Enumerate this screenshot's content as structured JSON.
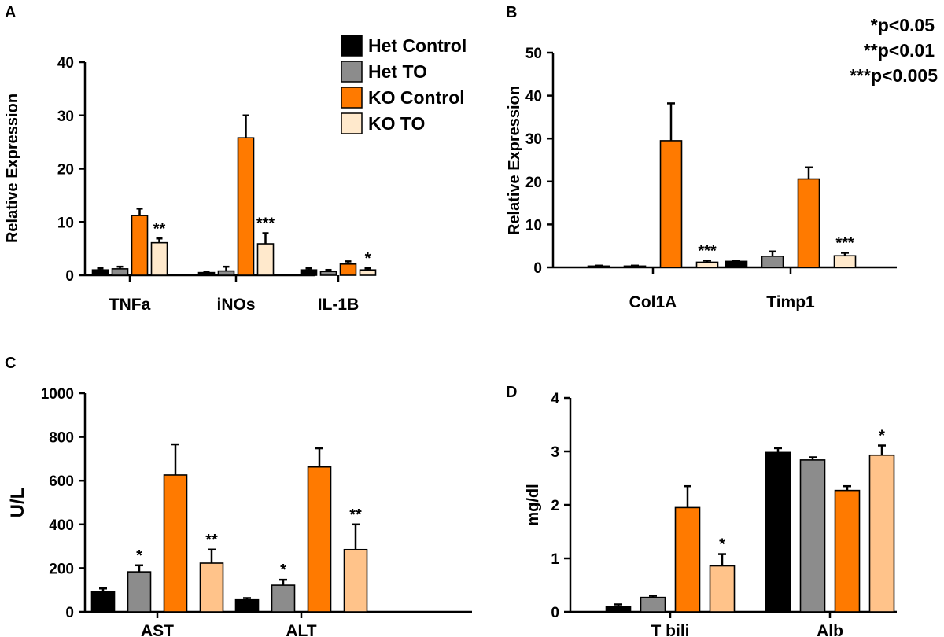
{
  "colors": {
    "Het Control": "#000000",
    "Het TO": "#8c8c8c",
    "KO Control": "#ff7a00",
    "KO TO": "#ffe9cc",
    "KO TO (C, D)": "#ffc38a"
  },
  "legend": {
    "items": [
      "Het Control",
      "Het TO",
      "KO Control",
      "KO TO"
    ]
  },
  "significance_notes": [
    "*p<0.05",
    "**p<0.01",
    "***p<0.005"
  ],
  "chart_data": [
    {
      "panel": "A",
      "type": "bar",
      "ylabel": "Relative Expression",
      "ylim": [
        0,
        40
      ],
      "yticks": [
        0,
        10,
        20,
        30,
        40
      ],
      "categories": [
        "TNFa",
        "iNOs",
        "IL-1B"
      ],
      "series": [
        {
          "name": "Het Control",
          "values": [
            1.0,
            0.5,
            1.0
          ],
          "errors": [
            0.3,
            0.2,
            0.3
          ]
        },
        {
          "name": "Het TO",
          "values": [
            1.2,
            0.8,
            0.7
          ],
          "errors": [
            0.4,
            0.8,
            0.3
          ]
        },
        {
          "name": "KO Control",
          "values": [
            11.2,
            25.8,
            2.1
          ],
          "errors": [
            1.3,
            4.2,
            0.5
          ]
        },
        {
          "name": "KO TO",
          "values": [
            6.1,
            5.9,
            1.0
          ],
          "errors": [
            0.8,
            2.0,
            0.3
          ]
        }
      ],
      "significance": [
        {
          "category": "TNFa",
          "series": "KO TO",
          "label": "**"
        },
        {
          "category": "iNOs",
          "series": "KO TO",
          "label": "***"
        },
        {
          "category": "IL-1B",
          "series": "KO TO",
          "label": "*"
        }
      ]
    },
    {
      "panel": "B",
      "type": "bar",
      "ylabel": "Relative Expression",
      "ylim": [
        0,
        50
      ],
      "yticks": [
        0,
        10,
        20,
        30,
        40,
        50
      ],
      "categories": [
        "Col1A",
        "Timp1"
      ],
      "series": [
        {
          "name": "Het Control",
          "values": [
            0.3,
            1.4
          ],
          "errors": [
            0.1,
            0.2
          ]
        },
        {
          "name": "Het TO",
          "values": [
            0.3,
            2.6
          ],
          "errors": [
            0.1,
            1.1
          ]
        },
        {
          "name": "KO Control",
          "values": [
            29.5,
            20.6
          ],
          "errors": [
            8.7,
            2.7
          ]
        },
        {
          "name": "KO TO",
          "values": [
            1.2,
            2.7
          ],
          "errors": [
            0.4,
            0.7
          ]
        }
      ],
      "significance": [
        {
          "category": "Col1A",
          "series": "KO TO",
          "label": "***"
        },
        {
          "category": "Timp1",
          "series": "KO TO",
          "label": "***"
        }
      ]
    },
    {
      "panel": "C",
      "type": "bar",
      "ylabel": "U/L",
      "ylim": [
        0,
        1000
      ],
      "yticks": [
        0,
        200,
        400,
        600,
        800,
        1000
      ],
      "categories": [
        "AST",
        "ALT"
      ],
      "series": [
        {
          "name": "Het Control",
          "values": [
            92,
            55
          ],
          "errors": [
            15,
            8
          ]
        },
        {
          "name": "Het TO",
          "values": [
            183,
            122
          ],
          "errors": [
            30,
            25
          ]
        },
        {
          "name": "KO Control",
          "values": [
            626,
            663
          ],
          "errors": [
            140,
            85
          ]
        },
        {
          "name": "KO TO",
          "values": [
            223,
            285
          ],
          "errors": [
            62,
            115
          ]
        }
      ],
      "significance": [
        {
          "category": "AST",
          "series": "Het TO",
          "label": "*"
        },
        {
          "category": "AST",
          "series": "KO TO",
          "label": "**"
        },
        {
          "category": "ALT",
          "series": "Het TO",
          "label": "*"
        },
        {
          "category": "ALT",
          "series": "KO TO",
          "label": "**"
        }
      ]
    },
    {
      "panel": "D",
      "type": "bar",
      "ylabel": "mg/dl",
      "ylim": [
        0,
        4
      ],
      "yticks": [
        0,
        1,
        2,
        3,
        4
      ],
      "categories": [
        "T bili",
        "Alb"
      ],
      "series": [
        {
          "name": "Het Control",
          "values": [
            0.1,
            2.98
          ],
          "errors": [
            0.04,
            0.08
          ]
        },
        {
          "name": "Het TO",
          "values": [
            0.27,
            2.84
          ],
          "errors": [
            0.03,
            0.05
          ]
        },
        {
          "name": "KO Control",
          "values": [
            1.95,
            2.27
          ],
          "errors": [
            0.4,
            0.08
          ]
        },
        {
          "name": "KO TO",
          "values": [
            0.86,
            2.93
          ],
          "errors": [
            0.22,
            0.18
          ]
        }
      ],
      "significance": [
        {
          "category": "T bili",
          "series": "KO TO",
          "label": "*"
        },
        {
          "category": "Alb",
          "series": "KO TO",
          "label": "*"
        }
      ]
    }
  ]
}
